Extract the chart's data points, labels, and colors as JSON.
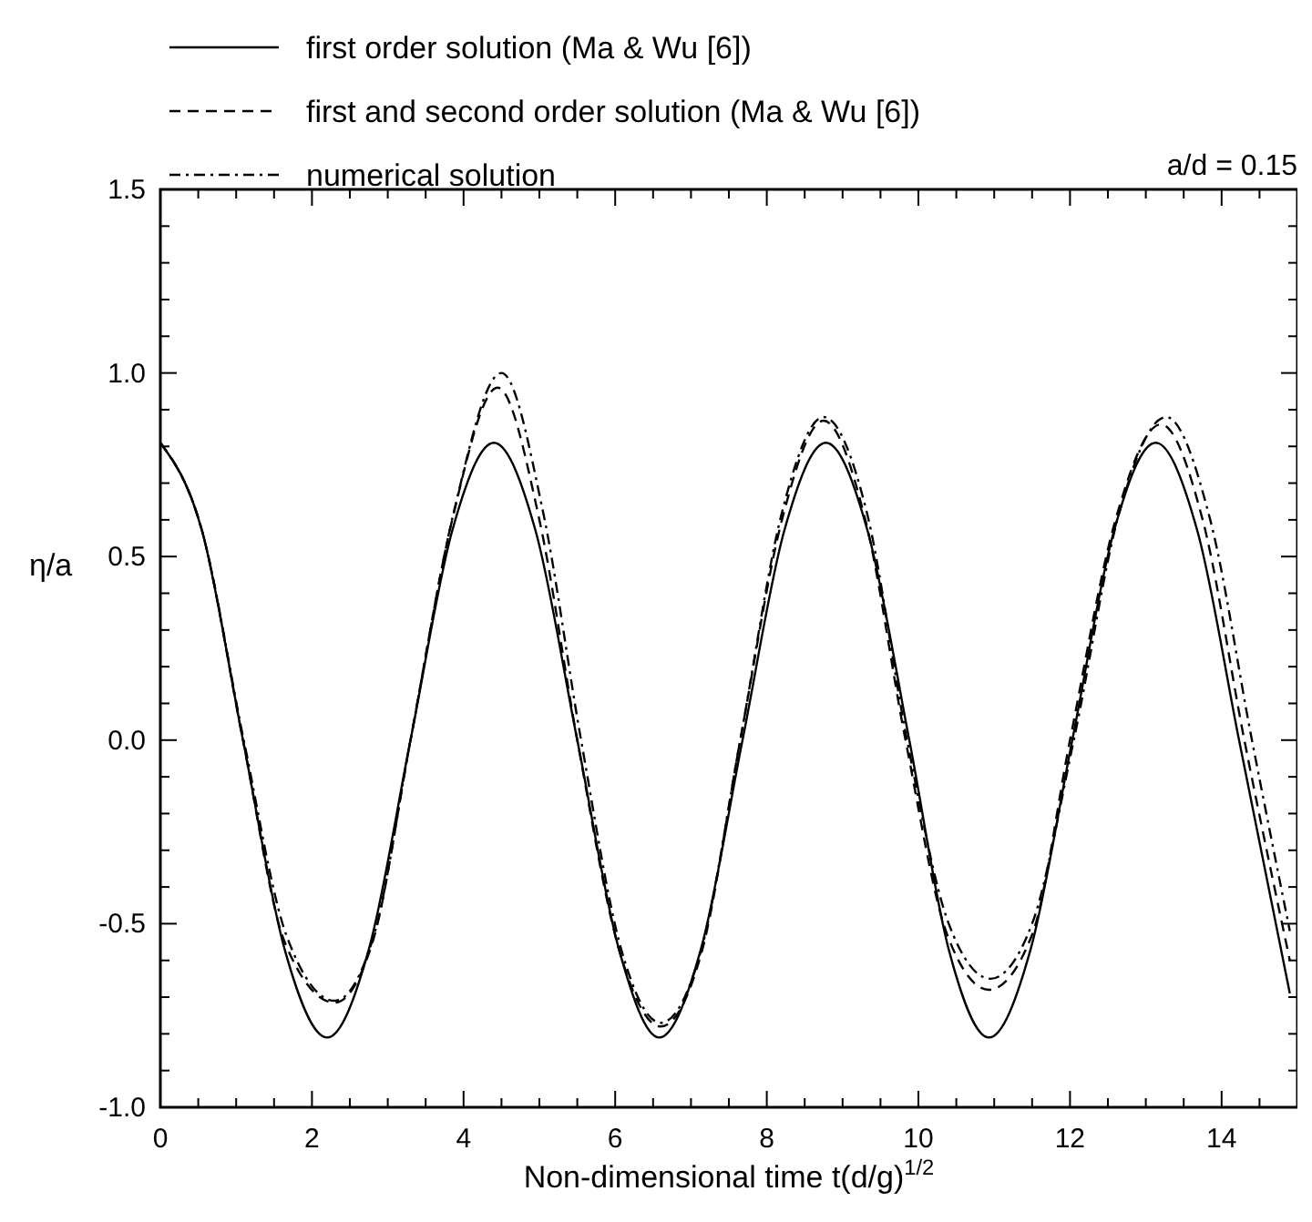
{
  "chart_data": {
    "type": "line",
    "xlabel": "Non-dimensional time t(d/g)$^{1/2}$",
    "ylabel": "η/a",
    "annotations": [
      "a/d = 0.15"
    ],
    "xlim": [
      0,
      15
    ],
    "ylim": [
      -1,
      1.5
    ],
    "xticks": [
      0,
      {
        "value": 0.5,
        "label": null
      },
      {
        "value": 1,
        "label": null
      },
      {
        "value": 1.5,
        "label": null
      },
      2,
      {
        "value": 2.5,
        "label": null
      },
      {
        "value": 3,
        "label": null
      },
      {
        "value": 3.5,
        "label": null
      },
      4,
      {
        "value": 4.5,
        "label": null
      },
      {
        "value": 5,
        "label": null
      },
      {
        "value": 5.5,
        "label": null
      },
      6,
      {
        "value": 6.5,
        "label": null
      },
      {
        "value": 7,
        "label": null
      },
      {
        "value": 7.5,
        "label": null
      },
      8,
      {
        "value": 8.5,
        "label": null
      },
      {
        "value": 9,
        "label": null
      },
      {
        "value": 9.5,
        "label": null
      },
      10,
      {
        "value": 10.5,
        "label": null
      },
      {
        "value": 11,
        "label": null
      },
      {
        "value": 11.5,
        "label": null
      },
      12,
      {
        "value": 12.5,
        "label": null
      },
      {
        "value": 13,
        "label": null
      },
      {
        "value": 13.5,
        "label": null
      },
      14,
      {
        "value": 14.5,
        "label": null
      }
    ],
    "yticks": [
      {
        "value": -1,
        "label": "-1.0"
      },
      {
        "value": -0.9,
        "label": null
      },
      {
        "value": -0.8,
        "label": null
      },
      {
        "value": -0.7,
        "label": null
      },
      {
        "value": -0.6,
        "label": null
      },
      -0.5,
      {
        "value": -0.4,
        "label": null
      },
      {
        "value": -0.3,
        "label": null
      },
      {
        "value": -0.2,
        "label": null
      },
      {
        "value": -0.1,
        "label": null
      },
      {
        "value": 0,
        "label": "0.0"
      },
      {
        "value": 0.1,
        "label": null
      },
      {
        "value": 0.2,
        "label": null
      },
      {
        "value": 0.3,
        "label": null
      },
      {
        "value": 0.4,
        "label": null
      },
      0.5,
      {
        "value": 0.6,
        "label": null
      },
      {
        "value": 0.7,
        "label": null
      },
      {
        "value": 0.8,
        "label": null
      },
      {
        "value": 0.9,
        "label": null
      },
      {
        "value": 1,
        "label": "1.0"
      },
      {
        "value": 1.1,
        "label": null
      },
      {
        "value": 1.2,
        "label": null
      },
      {
        "value": 1.3,
        "label": null
      },
      {
        "value": 1.4,
        "label": null
      },
      1.5
    ],
    "legend": "top left",
    "marker": "none",
    "series": [
      {
        "name": "first order solution (Ma & Wu  [6])",
        "color": "#000000",
        "line_style": "solid",
        "x": [
          0,
          0.55,
          1.09,
          1.64,
          2.2,
          2.75,
          3.3,
          3.85,
          4.4,
          4.95,
          5.5,
          6.05,
          6.58,
          7.13,
          7.68,
          8.23,
          8.78,
          9.33,
          9.88,
          10.4,
          10.93,
          11.48,
          12.03,
          12.58,
          13.13,
          13.68,
          14.23,
          14.9
        ],
        "values": [
          0.81,
          0.57,
          0,
          -0.57,
          -0.81,
          -0.57,
          0,
          0.57,
          0.81,
          0.57,
          0,
          -0.57,
          -0.81,
          -0.57,
          0,
          0.57,
          0.81,
          0.57,
          0,
          -0.57,
          -0.81,
          -0.57,
          0,
          0.57,
          0.81,
          0.57,
          0,
          -0.69
        ]
      },
      {
        "name": "first and second order solution (Ma & Wu [6])",
        "color": "#000000",
        "line_style": "dashed",
        "x": [
          0,
          0.55,
          1.09,
          1.64,
          2.3,
          2.8,
          3.3,
          3.85,
          4.45,
          5.0,
          5.5,
          6.05,
          6.6,
          7.15,
          7.65,
          8.2,
          8.75,
          9.3,
          9.83,
          10.38,
          10.93,
          11.5,
          12.0,
          12.6,
          13.2,
          13.75,
          14.3,
          14.9
        ],
        "values": [
          0.81,
          0.57,
          0,
          -0.55,
          -0.715,
          -0.55,
          0,
          0.6,
          0.96,
          0.6,
          0,
          -0.57,
          -0.78,
          -0.57,
          0,
          0.6,
          0.87,
          0.6,
          0,
          -0.53,
          -0.68,
          -0.53,
          0,
          0.6,
          0.86,
          0.6,
          0,
          -0.6
        ]
      },
      {
        "name": "numerical solution",
        "color": "#000000",
        "line_style": "dashdot",
        "x": [
          0,
          0.55,
          1.1,
          1.66,
          2.3,
          2.82,
          3.3,
          3.87,
          4.5,
          5.05,
          5.55,
          6.08,
          6.6,
          7.15,
          7.65,
          8.2,
          8.75,
          9.32,
          9.85,
          10.4,
          10.95,
          11.5,
          12.05,
          12.65,
          13.27,
          13.85,
          14.4,
          14.9
        ],
        "values": [
          0.81,
          0.57,
          0,
          -0.53,
          -0.71,
          -0.53,
          0,
          0.62,
          1.0,
          0.62,
          0,
          -0.57,
          -0.77,
          -0.56,
          0,
          0.62,
          0.88,
          0.62,
          0,
          -0.5,
          -0.65,
          -0.5,
          0,
          0.62,
          0.88,
          0.6,
          0,
          -0.52
        ]
      }
    ]
  }
}
